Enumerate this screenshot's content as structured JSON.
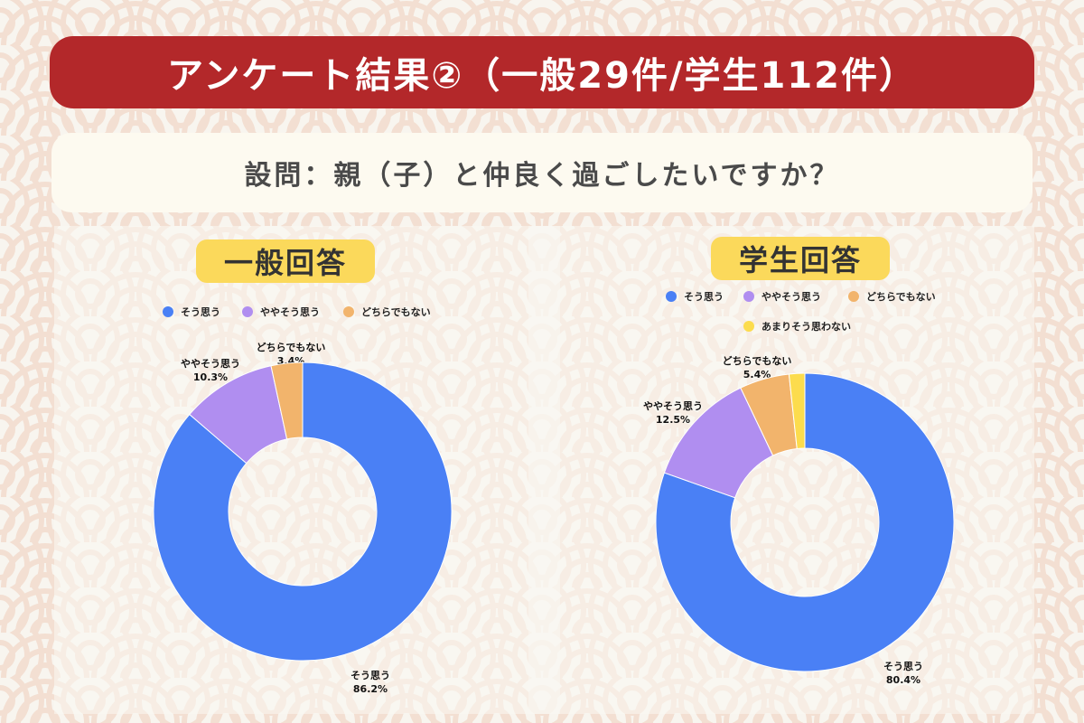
{
  "header": {
    "title": "アンケート結果②（一般29件/学生112件）"
  },
  "question": {
    "text": "設問：親（子）と仲良く過ごしたいですか？"
  },
  "colors": {
    "title_bg": "#b3282a",
    "badge": "#fbd95b",
    "blue": "#4a80f5",
    "purple": "#b08ef0",
    "orange": "#f2b46c",
    "yellow": "#fcdc4d"
  },
  "chart_data": [
    {
      "type": "pie",
      "title": "一般回答",
      "legend": [
        "そう思う",
        "ややそう思う",
        "どちらでもない"
      ],
      "categories": [
        "そう思う",
        "ややそう思う",
        "どちらでもない"
      ],
      "values": [
        86.2,
        10.3,
        3.4
      ],
      "labels": [
        "86.2%",
        "10.3%",
        "3.4%"
      ],
      "donut": true,
      "legend_position": "top"
    },
    {
      "type": "pie",
      "title": "学生回答",
      "legend": [
        "そう思う",
        "ややそう思う",
        "どちらでもない",
        "あまりそう思わない"
      ],
      "categories": [
        "そう思う",
        "ややそう思う",
        "どちらでもない",
        "あまりそう思わない"
      ],
      "values": [
        80.4,
        12.5,
        5.4,
        1.7
      ],
      "labels": [
        "80.4%",
        "12.5%",
        "5.4%",
        ""
      ],
      "donut": true,
      "legend_position": "top"
    }
  ]
}
